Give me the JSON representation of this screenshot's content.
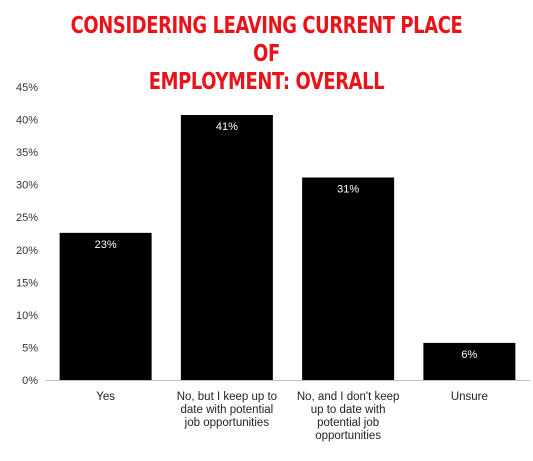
{
  "chart_data": {
    "type": "bar",
    "title_lines": [
      "CONSIDERING LEAVING CURRENT PLACE OF",
      "EMPLOYMENT: OVERALL"
    ],
    "categories": [
      [
        "Yes"
      ],
      [
        "No, but I keep up to",
        "date with potential",
        "job opportunities"
      ],
      [
        "No, and I don't keep",
        "up to date with",
        "potential job",
        "opportunities"
      ],
      [
        "Unsure"
      ]
    ],
    "values": [
      22.6,
      40.7,
      31.1,
      5.7
    ],
    "data_labels": [
      "23%",
      "41%",
      "31%",
      "6%"
    ],
    "yticks": [
      "0%",
      "5%",
      "10%",
      "15%",
      "20%",
      "25%",
      "30%",
      "35%",
      "40%",
      "45%"
    ],
    "ylim": [
      0,
      45
    ],
    "grid": false,
    "colors": {
      "bar": "#000000",
      "title": "#e8141c",
      "axis": "#bfbfbf",
      "data_label": "#ffffff"
    }
  }
}
